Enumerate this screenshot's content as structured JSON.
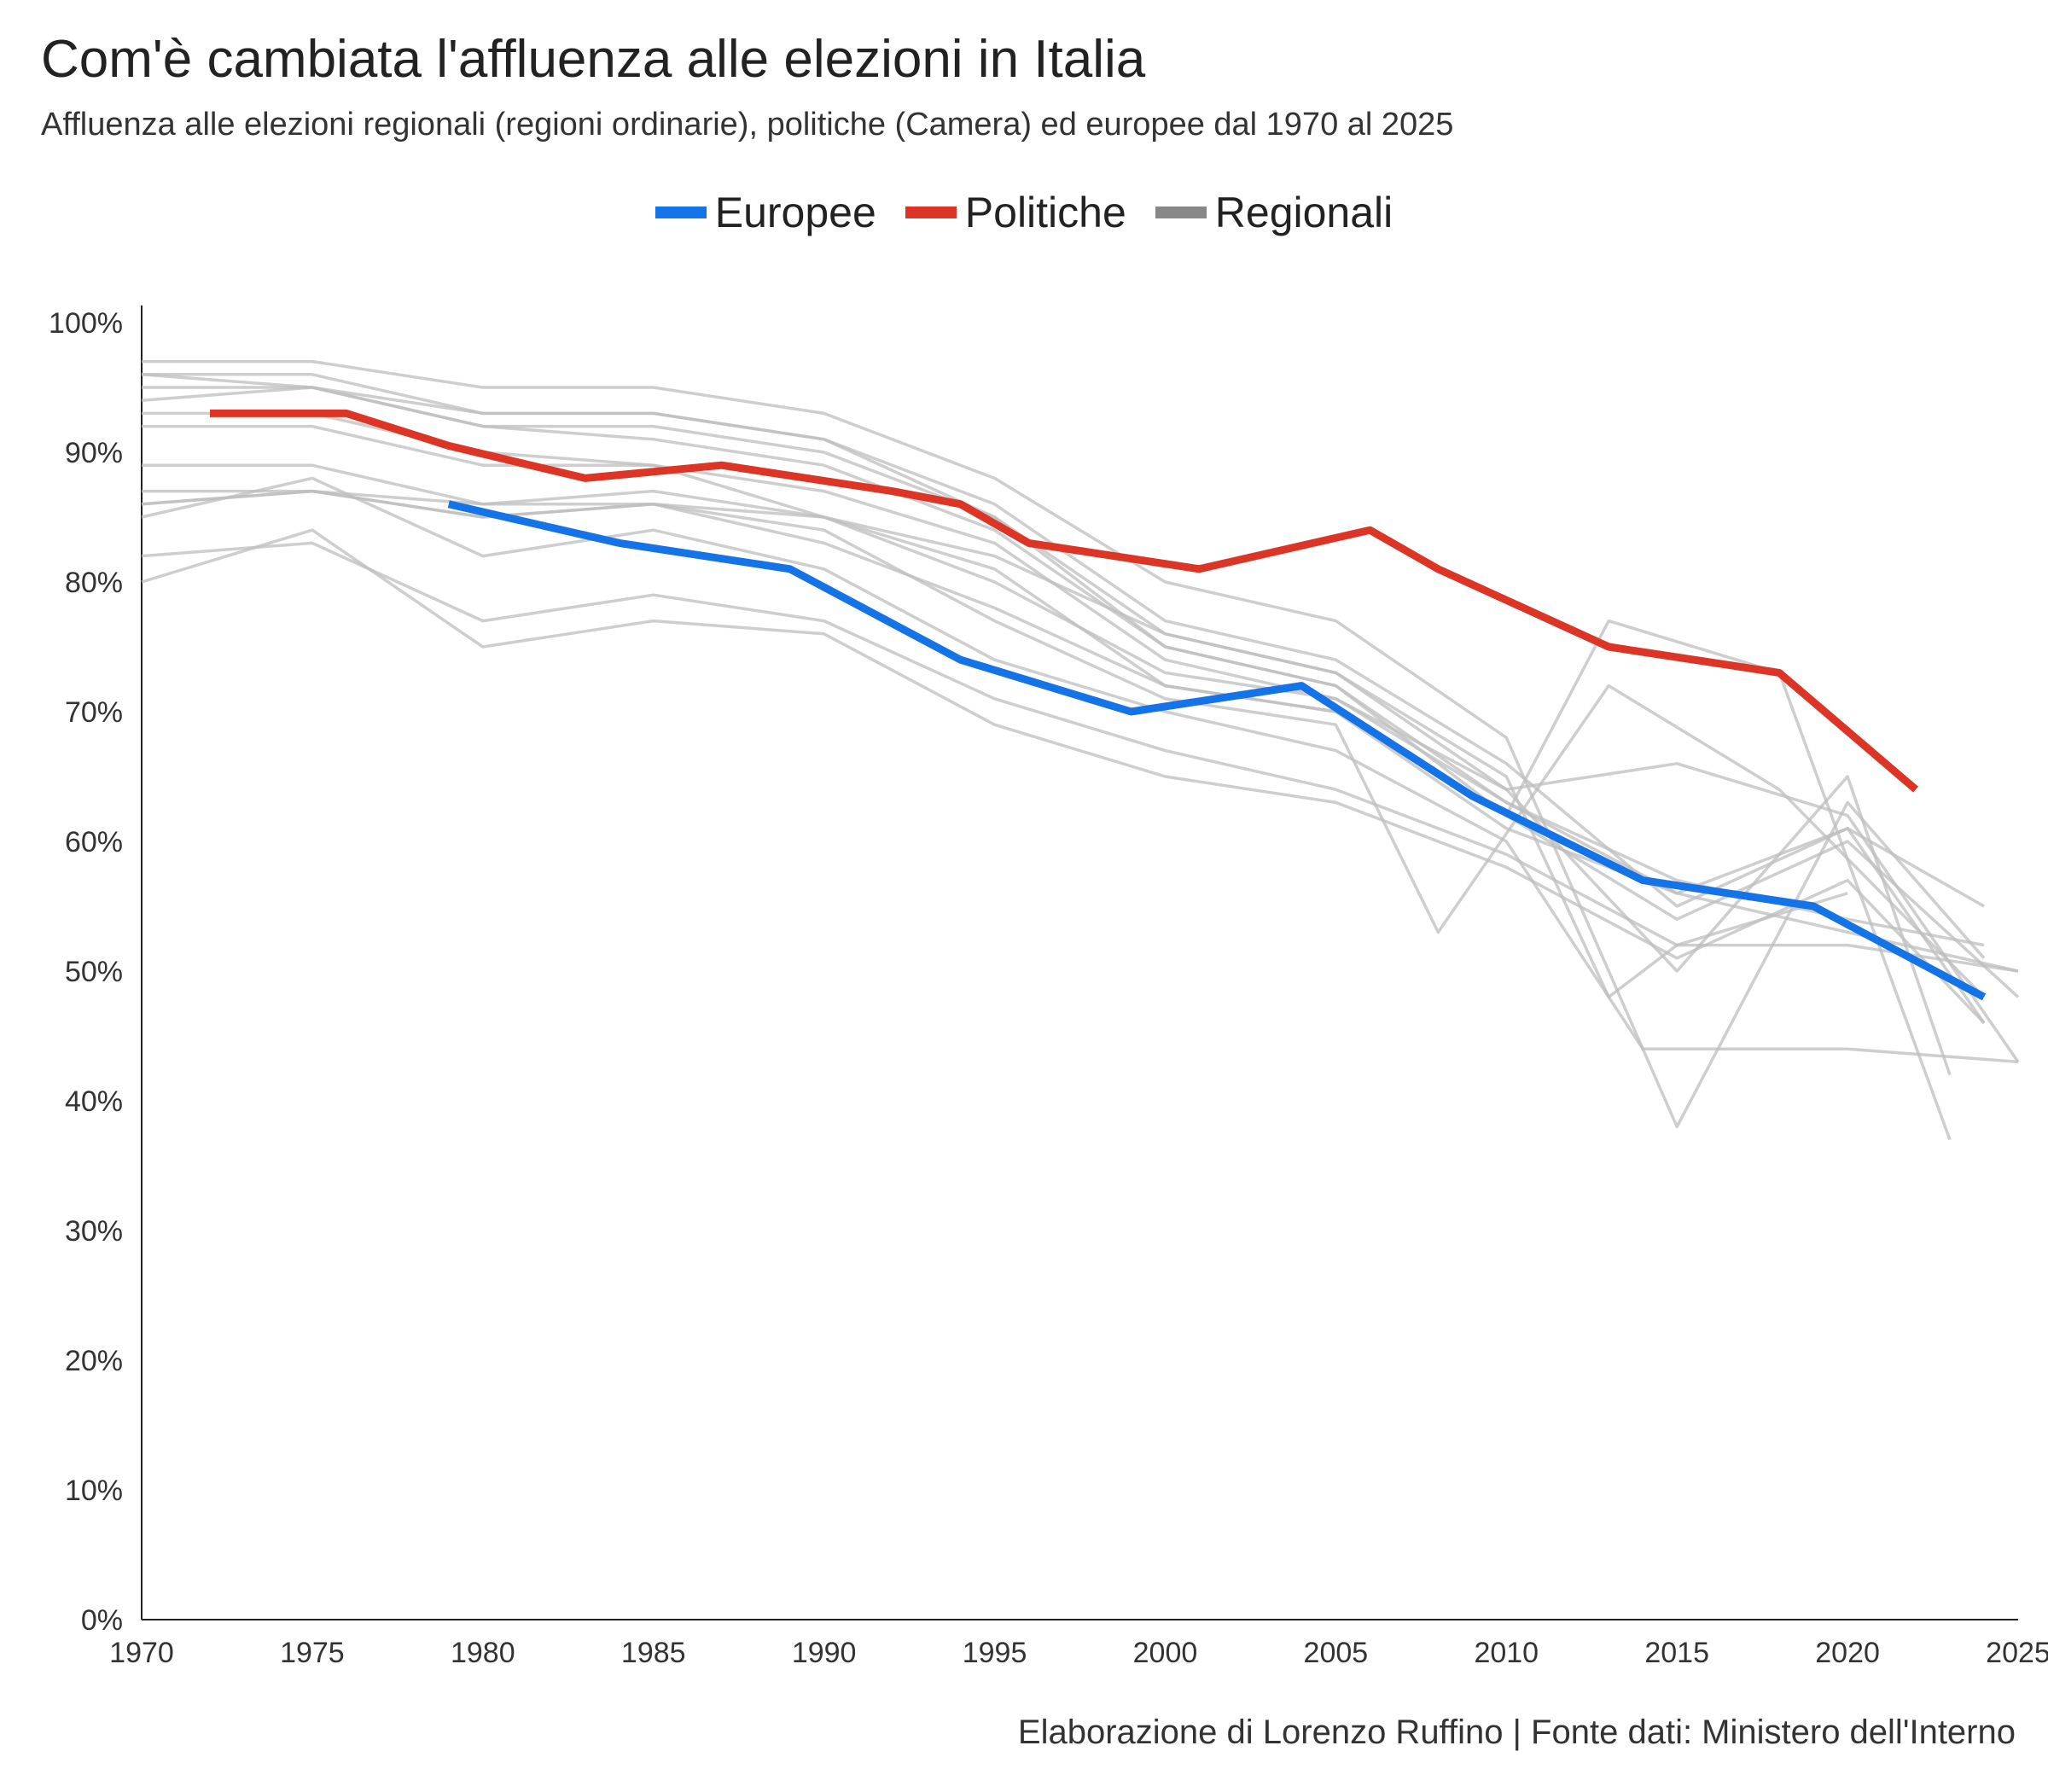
{
  "title": "Com'è cambiata l'affluenza alle elezioni in Italia",
  "subtitle": "Affluenza alle elezioni regionali (regioni ordinarie), politiche (Camera) ed europee dal 1970 al 2025",
  "caption": "Elaborazione di Lorenzo Ruffino | Fonte dati: Ministero dell'Interno",
  "colors": {
    "europee": "#1473e6",
    "politiche": "#dc3526",
    "regionali": "#888888",
    "regionali_line": "#bdbdbd",
    "axis": "#222222"
  },
  "chart_data": {
    "type": "line",
    "title": "Com'è cambiata l'affluenza alle elezioni in Italia",
    "subtitle": "Affluenza alle elezioni regionali (regioni ordinarie), politiche (Camera) ed europee dal 1970 al 2025",
    "xlabel": "",
    "ylabel": "",
    "xlim": [
      1970,
      2025
    ],
    "ylim": [
      0,
      100
    ],
    "xticks": [
      "1970",
      "1975",
      "1980",
      "1985",
      "1990",
      "1995",
      "2000",
      "2005",
      "2010",
      "2015",
      "2020",
      "2025"
    ],
    "yticks": [
      "0%",
      "10%",
      "20%",
      "30%",
      "40%",
      "50%",
      "60%",
      "70%",
      "80%",
      "90%",
      "100%"
    ],
    "grid": false,
    "legend_position": "top-center",
    "legend": [
      "Europee",
      "Politiche",
      "Regionali"
    ],
    "series": [
      {
        "name": "Europee",
        "color": "#1473e6",
        "x": [
          1979,
          1984,
          1989,
          1994,
          1999,
          2004,
          2009,
          2014,
          2019,
          2024
        ],
        "y": [
          86,
          83,
          81,
          74,
          70,
          72,
          63.5,
          57,
          55,
          48
        ]
      },
      {
        "name": "Politiche",
        "color": "#dc3526",
        "x": [
          1972,
          1976,
          1979,
          1983,
          1987,
          1992,
          1994,
          1996,
          2001,
          2006,
          2008,
          2013,
          2018,
          2022
        ],
        "y": [
          93,
          93,
          90.5,
          88,
          89,
          87,
          86,
          83,
          81,
          84,
          81,
          75,
          73,
          64
        ]
      },
      {
        "name": "Regionali",
        "color": "#888888",
        "lines": [
          {
            "x": [
              1970,
              1975,
              1980,
              1985,
              1990,
              1995,
              2000,
              2005,
              2010,
              2015,
              2020,
              2024
            ],
            "y": [
              97,
              97,
              95,
              95,
              93,
              88,
              80,
              77,
              68,
              38,
              63,
              51
            ]
          },
          {
            "x": [
              1970,
              1975,
              1980,
              1985,
              1990,
              1995,
              2000,
              2005,
              2010,
              2015,
              2020,
              2024
            ],
            "y": [
              96,
              96,
              93,
              93,
              91,
              86,
              77,
              74,
              66,
              55,
              61,
              55
            ]
          },
          {
            "x": [
              1970,
              1975,
              1980,
              1985,
              1990,
              1995,
              2000,
              2005,
              2010,
              2015,
              2020,
              2023
            ],
            "y": [
              96,
              95,
              93,
              93,
              91,
              85,
              76,
              73,
              64,
              50,
              65,
              42
            ]
          },
          {
            "x": [
              1970,
              1975,
              1980,
              1985,
              1990,
              1995,
              2000,
              2005,
              2010,
              2013,
              2018,
              2023
            ],
            "y": [
              95,
              95,
              92,
              92,
              90,
              85,
              75,
              72,
              62,
              77,
              73,
              37
            ]
          },
          {
            "x": [
              1970,
              1975,
              1980,
              1985,
              1990,
              1995,
              2000,
              2005,
              2010,
              2015,
              2020,
              2024
            ],
            "y": [
              94,
              95,
              92,
              91,
              89,
              84,
              75,
              72,
              63,
              57,
              54,
              52
            ]
          },
          {
            "x": [
              1970,
              1975,
              1980,
              1985,
              1990,
              1995,
              2000,
              2005,
              2010,
              2015,
              2020,
              2025
            ],
            "y": [
              93,
              93,
              90,
              89,
              87,
              83,
              74,
              71,
              63,
              56,
              53,
              50
            ]
          },
          {
            "x": [
              1970,
              1975,
              1980,
              1985,
              1990,
              1995,
              2000,
              2005,
              2010,
              2015,
              2020,
              2025
            ],
            "y": [
              92,
              92,
              89,
              89,
              85,
              81,
              72,
              70,
              62,
              54,
              60,
              48
            ]
          },
          {
            "x": [
              1970,
              1975,
              1980,
              1985,
              1990,
              1995,
              2000,
              2005,
              2010,
              2015,
              2020,
              2025
            ],
            "y": [
              89,
              89,
              86,
              87,
              85,
              80,
              73,
              71,
              64,
              66,
              62,
              43
            ]
          },
          {
            "x": [
              1970,
              1975,
              1980,
              1985,
              1990,
              1995,
              2000,
              2005,
              2010,
              2015,
              2020,
              2024
            ],
            "y": [
              87,
              87,
              86,
              86,
              83,
              78,
              72,
              70,
              61,
              56,
              61,
              46
            ]
          },
          {
            "x": [
              1970,
              1975,
              1980,
              1985,
              1990,
              1995,
              2000,
              2005,
              2008,
              2013,
              2018,
              2024
            ],
            "y": [
              86,
              87,
              85,
              86,
              84,
              77,
              71,
              69,
              53,
              72,
              64,
              48
            ]
          },
          {
            "x": [
              1970,
              1975,
              1980,
              1985,
              1990,
              1995,
              2000,
              2005,
              2010,
              2014,
              2020,
              2025
            ],
            "y": [
              85,
              88,
              82,
              84,
              81,
              74,
              70,
              67,
              60,
              44,
              44,
              43
            ]
          },
          {
            "x": [
              1970,
              1975,
              1980,
              1985,
              1990,
              1995,
              2000,
              2005,
              2010,
              2015,
              2020,
              2025
            ],
            "y": [
              82,
              83,
              77,
              79,
              77,
              71,
              67,
              64,
              59,
              52,
              52,
              50
            ]
          },
          {
            "x": [
              1970,
              1975,
              1980,
              1985,
              1990,
              1995,
              2000,
              2005,
              2010,
              2015,
              2020,
              2024
            ],
            "y": [
              80,
              84,
              75,
              77,
              76,
              69,
              65,
              63,
              58,
              51,
              57,
              46
            ]
          },
          {
            "x": [
              1970,
              1975,
              1980,
              1985,
              1990,
              1995,
              2000,
              2005,
              2010,
              2013,
              2015,
              2020
            ],
            "y": [
              86,
              87,
              85,
              86,
              85,
              82,
              76,
              73,
              65,
              48,
              52,
              56
            ]
          }
        ]
      }
    ]
  }
}
